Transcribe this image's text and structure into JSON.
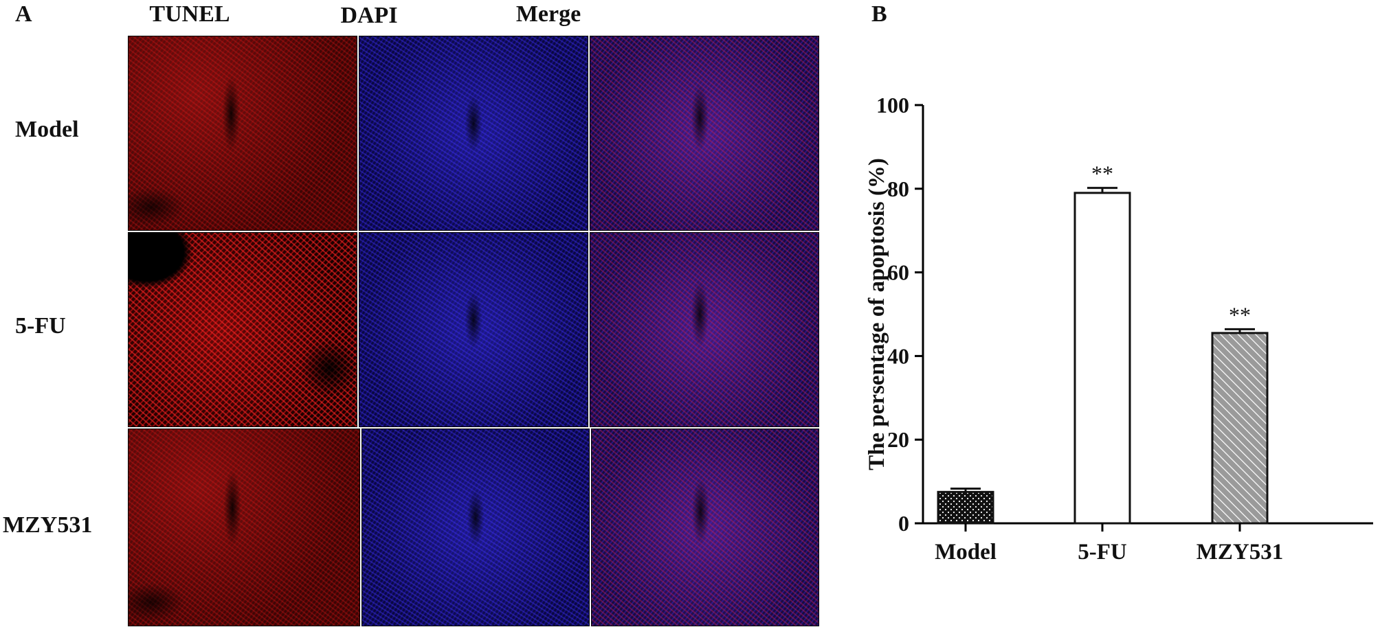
{
  "panel_a": {
    "letter": "A",
    "columns": [
      "TUNEL",
      "DAPI",
      "Merge"
    ],
    "rows": [
      "Model",
      "5-FU",
      "MZY531"
    ]
  },
  "panel_b": {
    "letter": "B"
  },
  "chart_data": {
    "type": "bar",
    "categories": [
      "Model",
      "5-FU",
      "MZY531"
    ],
    "values": [
      7.5,
      79,
      45.5
    ],
    "errors": [
      0.8,
      1.2,
      0.9
    ],
    "significance": [
      "",
      "**",
      "**"
    ],
    "bar_styles": [
      "dark-dotted",
      "white",
      "gray-hatched"
    ],
    "ylabel": "The persentage of apoptosis (%)",
    "xlabel": "",
    "ylim": [
      0,
      100
    ],
    "yticks": [
      0,
      20,
      40,
      60,
      80,
      100
    ],
    "grid": false
  },
  "colors": {
    "tunel": "#c81414",
    "dapi": "#2a20d0",
    "axis": "#000000",
    "bar_dark": "#111111",
    "bar_hatch": "#9a9a9a"
  }
}
